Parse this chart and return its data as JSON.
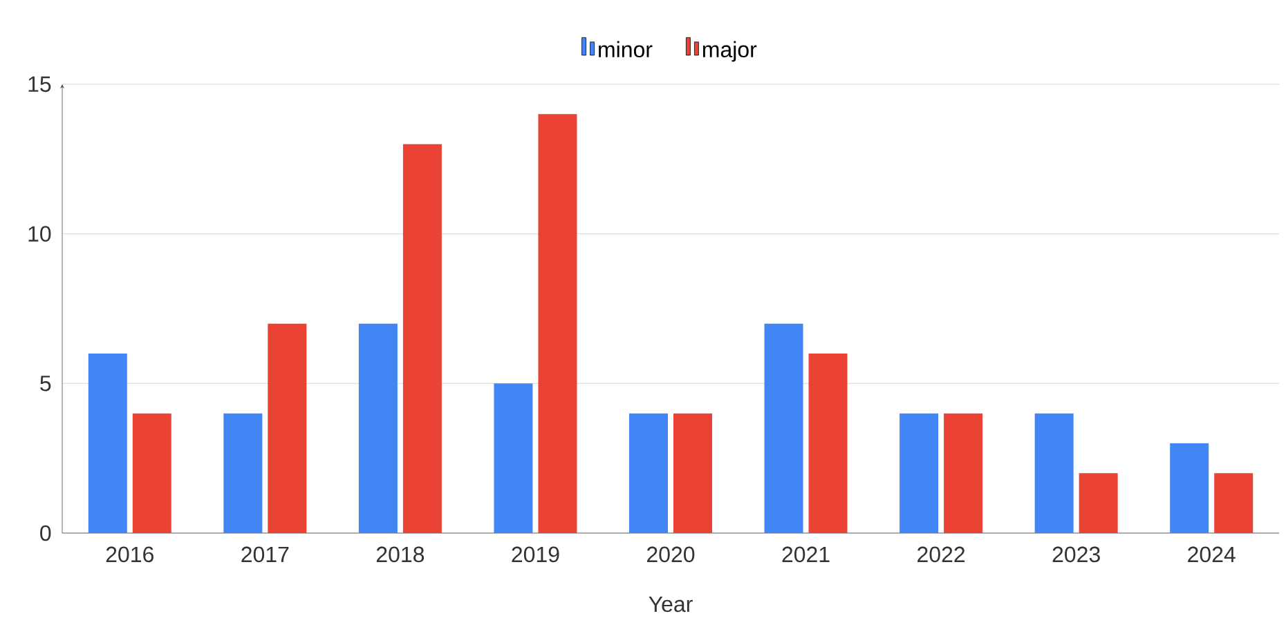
{
  "chart_data": {
    "type": "bar",
    "xlabel": "Year",
    "categories": [
      "2016",
      "2017",
      "2018",
      "2019",
      "2020",
      "2021",
      "2022",
      "2023",
      "2024"
    ],
    "series": [
      {
        "name": "minor",
        "color": "#4285f4",
        "values": [
          6,
          4,
          7,
          5,
          4,
          7,
          4,
          4,
          3
        ]
      },
      {
        "name": "major",
        "color": "#ea4335",
        "values": [
          4,
          7,
          13,
          14,
          4,
          6,
          4,
          2,
          2
        ]
      }
    ],
    "ylim": [
      0,
      15
    ],
    "yticks": [
      0,
      5,
      10,
      15
    ],
    "grid": "y",
    "legend": "top"
  }
}
